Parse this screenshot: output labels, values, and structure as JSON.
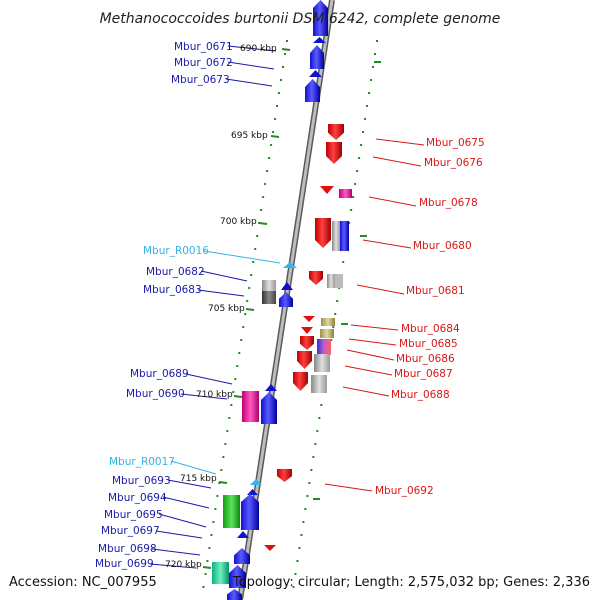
{
  "title": "Methanococcoides burtonii DSM 6242, complete genome",
  "accession": "Accession: NC_007955",
  "topology": "Topology: circular; Length: 2,575,032 bp; Genes: 2,336",
  "colors": {
    "left_label": "#1a1aa8",
    "right_label": "#d81818",
    "rna_label": "#33b5e5",
    "backbone": "#9c9c9c",
    "tick": "#228b22"
  },
  "kbp_labels": [
    "690 kbp",
    "695 kbp",
    "700 kbp",
    "705 kbp",
    "710 kbp",
    "715 kbp",
    "720 kbp"
  ],
  "left_labels": [
    {
      "text": "Mbur_0671",
      "kind": "gene"
    },
    {
      "text": "Mbur_0672",
      "kind": "gene"
    },
    {
      "text": "Mbur_0673",
      "kind": "gene"
    },
    {
      "text": "Mbur_R0016",
      "kind": "rna"
    },
    {
      "text": "Mbur_0682",
      "kind": "gene"
    },
    {
      "text": "Mbur_0683",
      "kind": "gene"
    },
    {
      "text": "Mbur_0689",
      "kind": "gene"
    },
    {
      "text": "Mbur_0690",
      "kind": "gene"
    },
    {
      "text": "Mbur_R0017",
      "kind": "rna"
    },
    {
      "text": "Mbur_0693",
      "kind": "gene"
    },
    {
      "text": "Mbur_0694",
      "kind": "gene"
    },
    {
      "text": "Mbur_0695",
      "kind": "gene"
    },
    {
      "text": "Mbur_0697",
      "kind": "gene"
    },
    {
      "text": "Mbur_0698",
      "kind": "gene"
    },
    {
      "text": "Mbur_0699",
      "kind": "gene"
    }
  ],
  "right_labels": [
    {
      "text": "Mbur_0675"
    },
    {
      "text": "Mbur_0676"
    },
    {
      "text": "Mbur_0678"
    },
    {
      "text": "Mbur_0680"
    },
    {
      "text": "Mbur_0681"
    },
    {
      "text": "Mbur_0684"
    },
    {
      "text": "Mbur_0685"
    },
    {
      "text": "Mbur_0686"
    },
    {
      "text": "Mbur_0687"
    },
    {
      "text": "Mbur_0688"
    },
    {
      "text": "Mbur_0692"
    }
  ]
}
